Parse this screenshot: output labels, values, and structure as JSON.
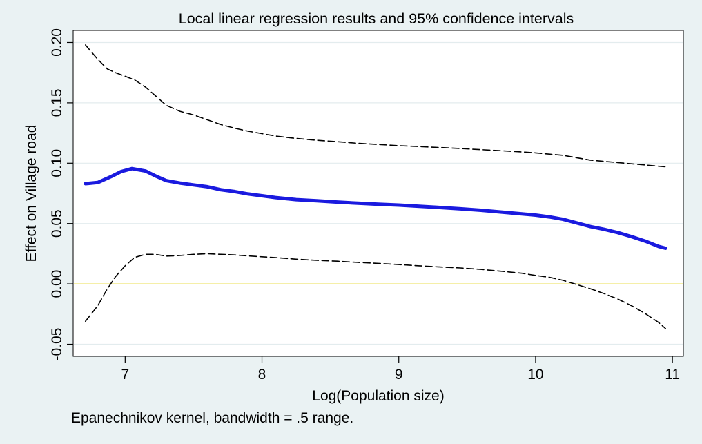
{
  "chart_data": {
    "type": "line",
    "title": "Local linear regression results and 95% confidence intervals",
    "xlabel": "Log(Population size)",
    "ylabel": "Effect on Village road",
    "note": "Epanechnikov kernel, bandwidth = .5 range.",
    "xlim": [
      6.62,
      11.08
    ],
    "ylim": [
      -0.06,
      0.21
    ],
    "xticks": [
      7,
      8,
      9,
      10,
      11
    ],
    "xtick_labels": [
      "7",
      "8",
      "9",
      "10",
      "11"
    ],
    "yticks": [
      -0.05,
      0.0,
      0.05,
      0.1,
      0.15,
      0.2
    ],
    "ytick_labels": [
      "-0.05",
      "0.00",
      "0.05",
      "0.10",
      "0.15",
      "0.20"
    ],
    "grid": true,
    "reference_line": {
      "y": 0.0,
      "color": "#f2ea8c"
    },
    "colors": {
      "estimate": "#1a1adf",
      "ci": "#000000",
      "plot_background": "#ffffff",
      "outer_background": "#eaf2f3",
      "grid": "#e3ecee"
    },
    "series": [
      {
        "style": "solid-thick",
        "x": [
          6.71,
          6.8,
          6.9,
          6.97,
          7.05,
          7.15,
          7.23,
          7.3,
          7.4,
          7.5,
          7.6,
          7.7,
          7.8,
          7.9,
          8.0,
          8.1,
          8.25,
          8.4,
          8.55,
          8.7,
          8.85,
          9.0,
          9.15,
          9.3,
          9.45,
          9.6,
          9.75,
          9.9,
          10.0,
          10.1,
          10.2,
          10.3,
          10.4,
          10.5,
          10.6,
          10.7,
          10.8,
          10.9,
          10.95
        ],
        "y": [
          0.083,
          0.084,
          0.089,
          0.093,
          0.0955,
          0.0935,
          0.089,
          0.0855,
          0.0835,
          0.082,
          0.0805,
          0.078,
          0.0765,
          0.0745,
          0.073,
          0.0715,
          0.0698,
          0.0688,
          0.0678,
          0.0668,
          0.066,
          0.0653,
          0.0643,
          0.0633,
          0.0622,
          0.061,
          0.0595,
          0.058,
          0.057,
          0.0555,
          0.0535,
          0.0505,
          0.0475,
          0.0452,
          0.0425,
          0.0392,
          0.0355,
          0.031,
          0.0295
        ]
      },
      {
        "style": "dashed",
        "x": [
          6.71,
          6.8,
          6.87,
          6.93,
          7.0,
          7.07,
          7.15,
          7.22,
          7.3,
          7.4,
          7.5,
          7.6,
          7.7,
          7.8,
          7.9,
          8.0,
          8.1,
          8.25,
          8.4,
          8.55,
          8.7,
          8.85,
          9.0,
          9.15,
          9.3,
          9.45,
          9.6,
          9.75,
          9.9,
          10.0,
          10.1,
          10.2,
          10.3,
          10.4,
          10.5,
          10.6,
          10.7,
          10.8,
          10.9,
          10.95
        ],
        "y": [
          0.198,
          0.186,
          0.178,
          0.175,
          0.172,
          0.169,
          0.163,
          0.156,
          0.148,
          0.143,
          0.14,
          0.136,
          0.132,
          0.129,
          0.1265,
          0.1245,
          0.1225,
          0.1205,
          0.119,
          0.1178,
          0.1165,
          0.1155,
          0.1145,
          0.1138,
          0.113,
          0.1122,
          0.1112,
          0.1103,
          0.1093,
          0.1085,
          0.1075,
          0.1065,
          0.1045,
          0.1025,
          0.1015,
          0.1005,
          0.0995,
          0.0985,
          0.0975,
          0.097
        ]
      },
      {
        "style": "dashed",
        "x": [
          6.71,
          6.8,
          6.87,
          6.93,
          7.0,
          7.07,
          7.15,
          7.22,
          7.3,
          7.4,
          7.5,
          7.6,
          7.7,
          7.8,
          7.9,
          8.0,
          8.1,
          8.25,
          8.4,
          8.55,
          8.7,
          8.85,
          9.0,
          9.15,
          9.3,
          9.45,
          9.6,
          9.75,
          9.9,
          10.0,
          10.1,
          10.2,
          10.3,
          10.4,
          10.5,
          10.6,
          10.7,
          10.8,
          10.9,
          10.95
        ],
        "y": [
          -0.031,
          -0.018,
          -0.004,
          0.006,
          0.015,
          0.022,
          0.0245,
          0.0245,
          0.023,
          0.0235,
          0.0245,
          0.025,
          0.0245,
          0.024,
          0.0232,
          0.0225,
          0.0218,
          0.0205,
          0.0195,
          0.0188,
          0.0178,
          0.017,
          0.016,
          0.015,
          0.014,
          0.0132,
          0.012,
          0.0105,
          0.0088,
          0.007,
          0.0055,
          0.003,
          -0.0005,
          -0.004,
          -0.008,
          -0.0125,
          -0.018,
          -0.0245,
          -0.032,
          -0.037
        ]
      }
    ]
  }
}
